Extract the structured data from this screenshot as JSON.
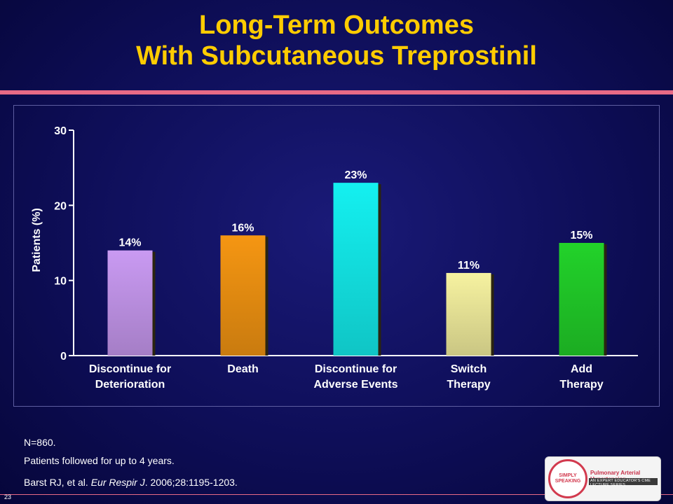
{
  "slide": {
    "title_line1": "Long-Term Outcomes",
    "title_line2": "With Subcutaneous Treprostinil",
    "slide_number": "23"
  },
  "footer": {
    "n_text": "N=860.",
    "followup_text": "Patients followed for up to 4 years.",
    "citation_authors": "Barst RJ, et al. ",
    "citation_journal": "Eur Respir J",
    "citation_rest": ". 2006;28:1195-1203."
  },
  "logo": {
    "circle_text": "SIMPLY SPEAKING",
    "line1": "Pulmonary Arterial Hypertension",
    "line2": "AN EXPERT EDUCATOR'S CME LECTURE SERIES"
  },
  "colors": {
    "title": "#ffcc00",
    "background": "#0e0e58",
    "accent_rule": "#e86a86"
  },
  "chart_data": {
    "type": "bar",
    "ylabel": "Patients (%)",
    "xlabel": "",
    "ylim": [
      0,
      30
    ],
    "yticks": [
      0,
      10,
      20,
      30
    ],
    "grid": false,
    "categories": [
      [
        "Discontinue for",
        "Deterioration"
      ],
      [
        "Death"
      ],
      [
        "Discontinue for",
        "Adverse Events"
      ],
      [
        "Switch",
        "Therapy"
      ],
      [
        "Add",
        "Therapy"
      ]
    ],
    "values": [
      14,
      16,
      23,
      11,
      15
    ],
    "data_labels": [
      "14%",
      "16%",
      "23%",
      "11%",
      "15%"
    ],
    "bar_colors": [
      "#c99af2",
      "#f59612",
      "#14f0f0",
      "#f6f2a0",
      "#22d22a"
    ]
  }
}
